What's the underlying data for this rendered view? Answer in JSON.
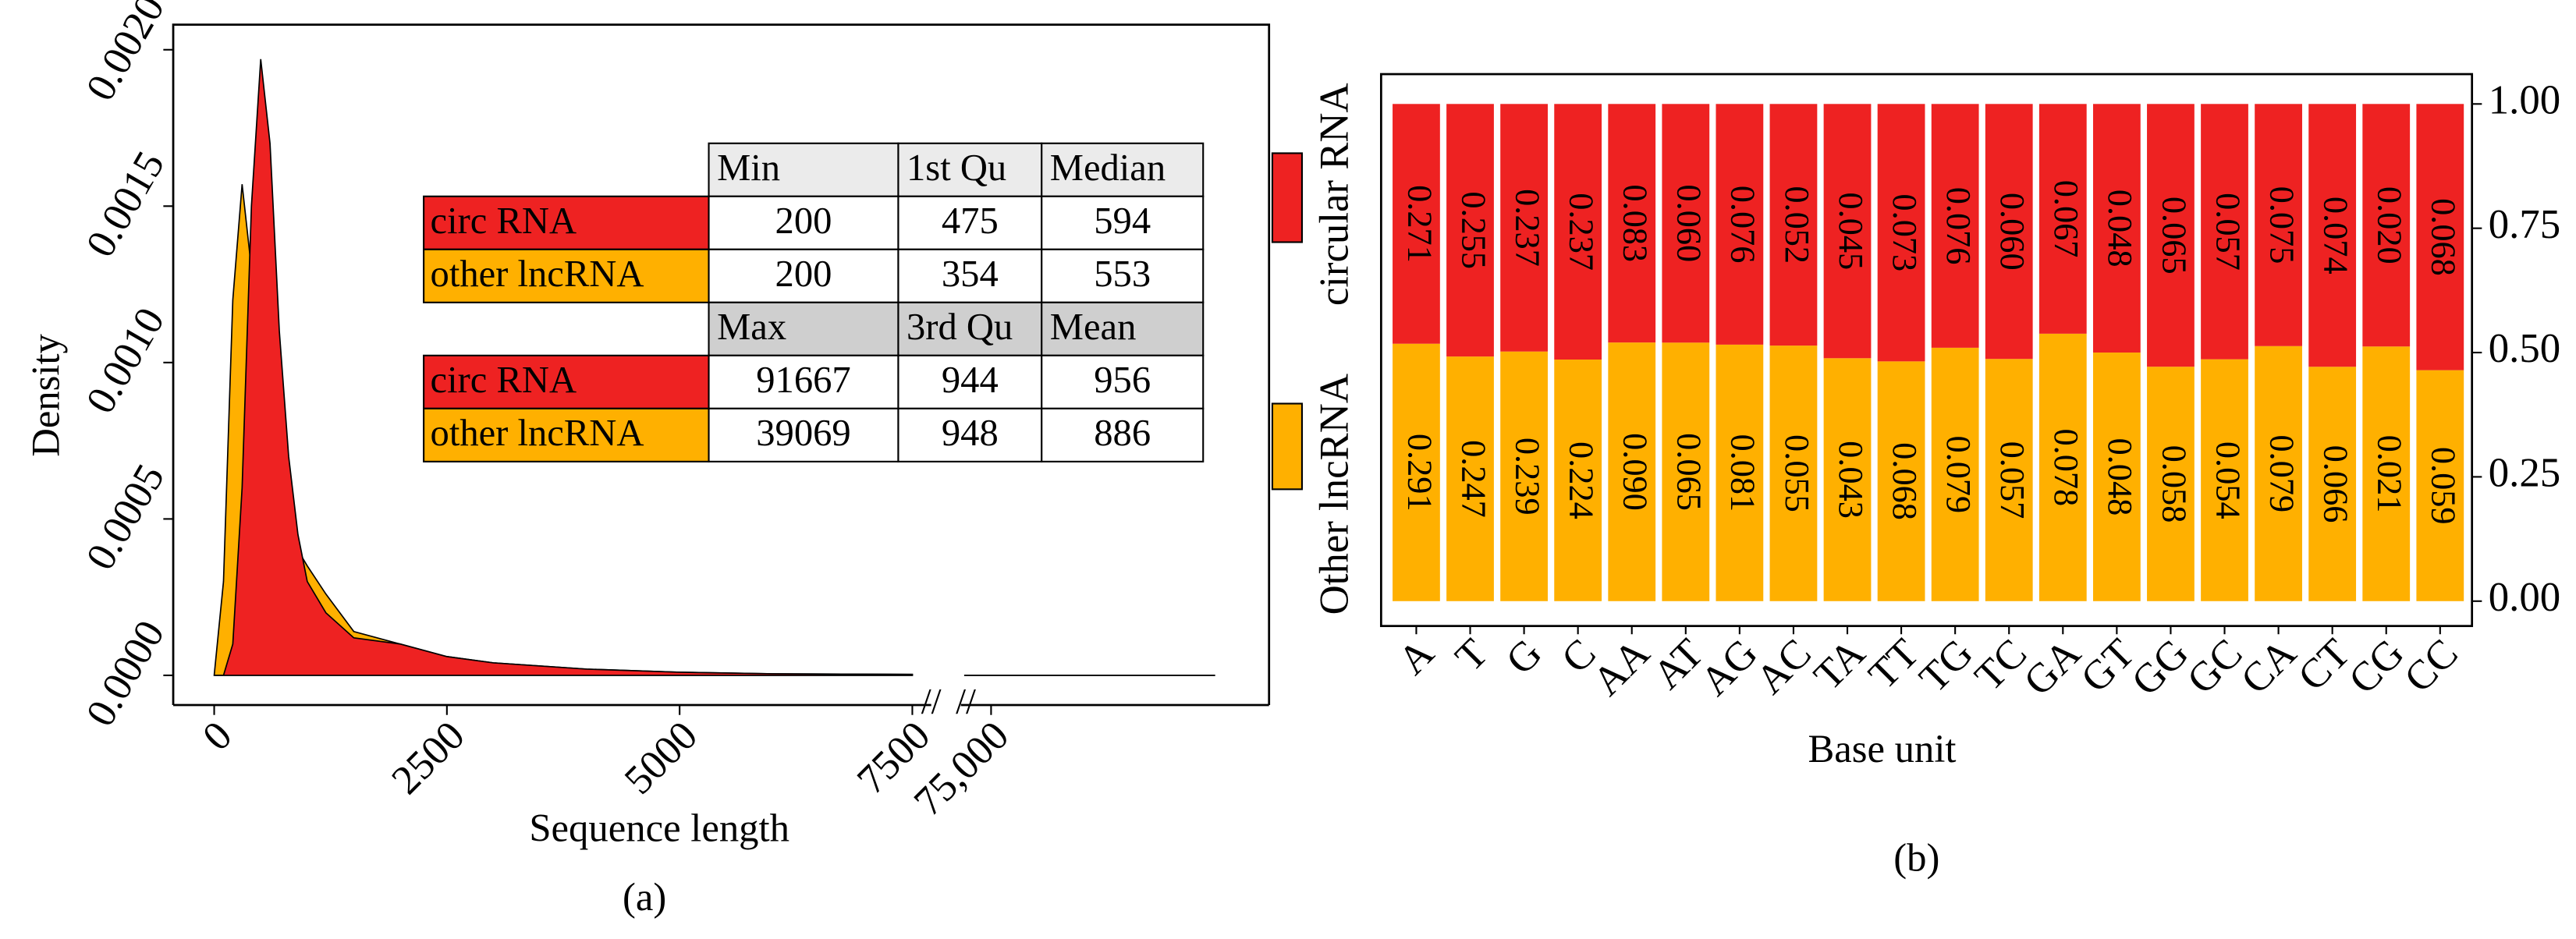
{
  "chart_data": [
    {
      "type": "area",
      "x_label": "Sequence length",
      "y_label": "Density",
      "caption": "(a)",
      "x": [
        0,
        100,
        200,
        300,
        400,
        500,
        600,
        700,
        800,
        900,
        1000,
        1200,
        1500,
        2000,
        2500,
        3000,
        4000,
        5000,
        6000,
        7500,
        73000,
        91667
      ],
      "series": [
        {
          "name": "circ RNA",
          "color": "#ee2222",
          "values": [
            0,
            0,
            0.0001,
            0.0006,
            0.0015,
            0.00197,
            0.0017,
            0.0011,
            0.0007,
            0.00045,
            0.0003,
            0.0002,
            0.00012,
            0.0001,
            6e-05,
            4e-05,
            2e-05,
            1e-05,
            5e-06,
            3e-06,
            0,
            0
          ]
        },
        {
          "name": "other lncRNA",
          "color": "#ffb000",
          "values": [
            0,
            0.0003,
            0.0012,
            0.00157,
            0.0013,
            0.0015,
            0.0012,
            0.0008,
            0.0006,
            0.0004,
            0.00035,
            0.00026,
            0.00014,
            0.0001,
            6e-05,
            4e-05,
            2e-05,
            1e-05,
            5e-06,
            3e-06,
            0,
            0
          ]
        }
      ],
      "xlim": [
        [
          -440,
          7650
        ],
        [
          73000,
          92000
        ]
      ],
      "xticks": [
        0,
        2500,
        5000,
        7500,
        {
          "value": 75000,
          "label": "75,000"
        }
      ],
      "ylim": [
        -9.5e-05,
        0.00208
      ],
      "yticks": [
        {
          "value": 0,
          "label": "0.0000"
        },
        {
          "value": 0.0005,
          "label": "0.0005"
        },
        {
          "value": 0.001,
          "label": "0.0010"
        },
        {
          "value": 0.0015,
          "label": "0.0015"
        },
        {
          "value": 0.002,
          "label": "0.0020"
        }
      ],
      "table": {
        "headers": [
          [
            "Min",
            "1st Qu",
            "Median"
          ],
          [
            "Max",
            "3rd Qu",
            "Mean"
          ]
        ],
        "rows": [
          [
            [
              200,
              475,
              594
            ],
            [
              200,
              354,
              553
            ]
          ],
          [
            [
              91667,
              944,
              956
            ],
            [
              39069,
              948,
              886
            ]
          ]
        ]
      }
    },
    {
      "type": "bar",
      "stacking": "percent",
      "x_label": "Base unit",
      "caption": "(b)",
      "categories": [
        "A",
        "T",
        "G",
        "C",
        "AA",
        "AT",
        "AG",
        "AC",
        "TA",
        "TT",
        "TG",
        "TC",
        "GA",
        "GT",
        "GG",
        "GC",
        "CA",
        "CT",
        "CG",
        "CC"
      ],
      "series": [
        {
          "name": "Other lncRNA",
          "color": "#ffb000",
          "values": [
            0.291,
            0.247,
            0.239,
            0.224,
            0.09,
            0.065,
            0.081,
            0.055,
            0.043,
            0.068,
            0.079,
            0.057,
            0.078,
            0.048,
            0.058,
            0.054,
            0.079,
            0.066,
            0.021,
            0.059
          ],
          "value_labels": [
            "0.291",
            "0.247",
            "0.239",
            "0.224",
            "0.090",
            "0.065",
            "0.081",
            "0.055",
            "0.043",
            "0.068",
            "0.079",
            "0.057",
            "0.078",
            "0.048",
            "0.058",
            "0.054",
            "0.079",
            "0.066",
            "0.021",
            "0.059"
          ]
        },
        {
          "name": "circular RNA",
          "color": "#ee2222",
          "values": [
            0.271,
            0.255,
            0.237,
            0.237,
            0.083,
            0.06,
            0.076,
            0.052,
            0.045,
            0.073,
            0.076,
            0.06,
            0.067,
            0.048,
            0.065,
            0.057,
            0.075,
            0.074,
            0.02,
            0.068
          ],
          "value_labels": [
            "0.271",
            "0.255",
            "0.237",
            "0.237",
            "0.083",
            "0.060",
            "0.076",
            "0.052",
            "0.045",
            "0.073",
            "0.076",
            "0.060",
            "0.067",
            "0.048",
            "0.065",
            "0.057",
            "0.075",
            "0.074",
            "0.020",
            "0.068"
          ]
        }
      ],
      "ylim": [
        -0.05,
        1.06
      ],
      "yticks": [
        {
          "value": 0,
          "label": "0.00"
        },
        {
          "value": 0.25,
          "label": "0.25"
        },
        {
          "value": 0.5,
          "label": "0.50"
        },
        {
          "value": 0.75,
          "label": "0.75"
        },
        {
          "value": 1,
          "label": "1.00"
        }
      ]
    }
  ]
}
